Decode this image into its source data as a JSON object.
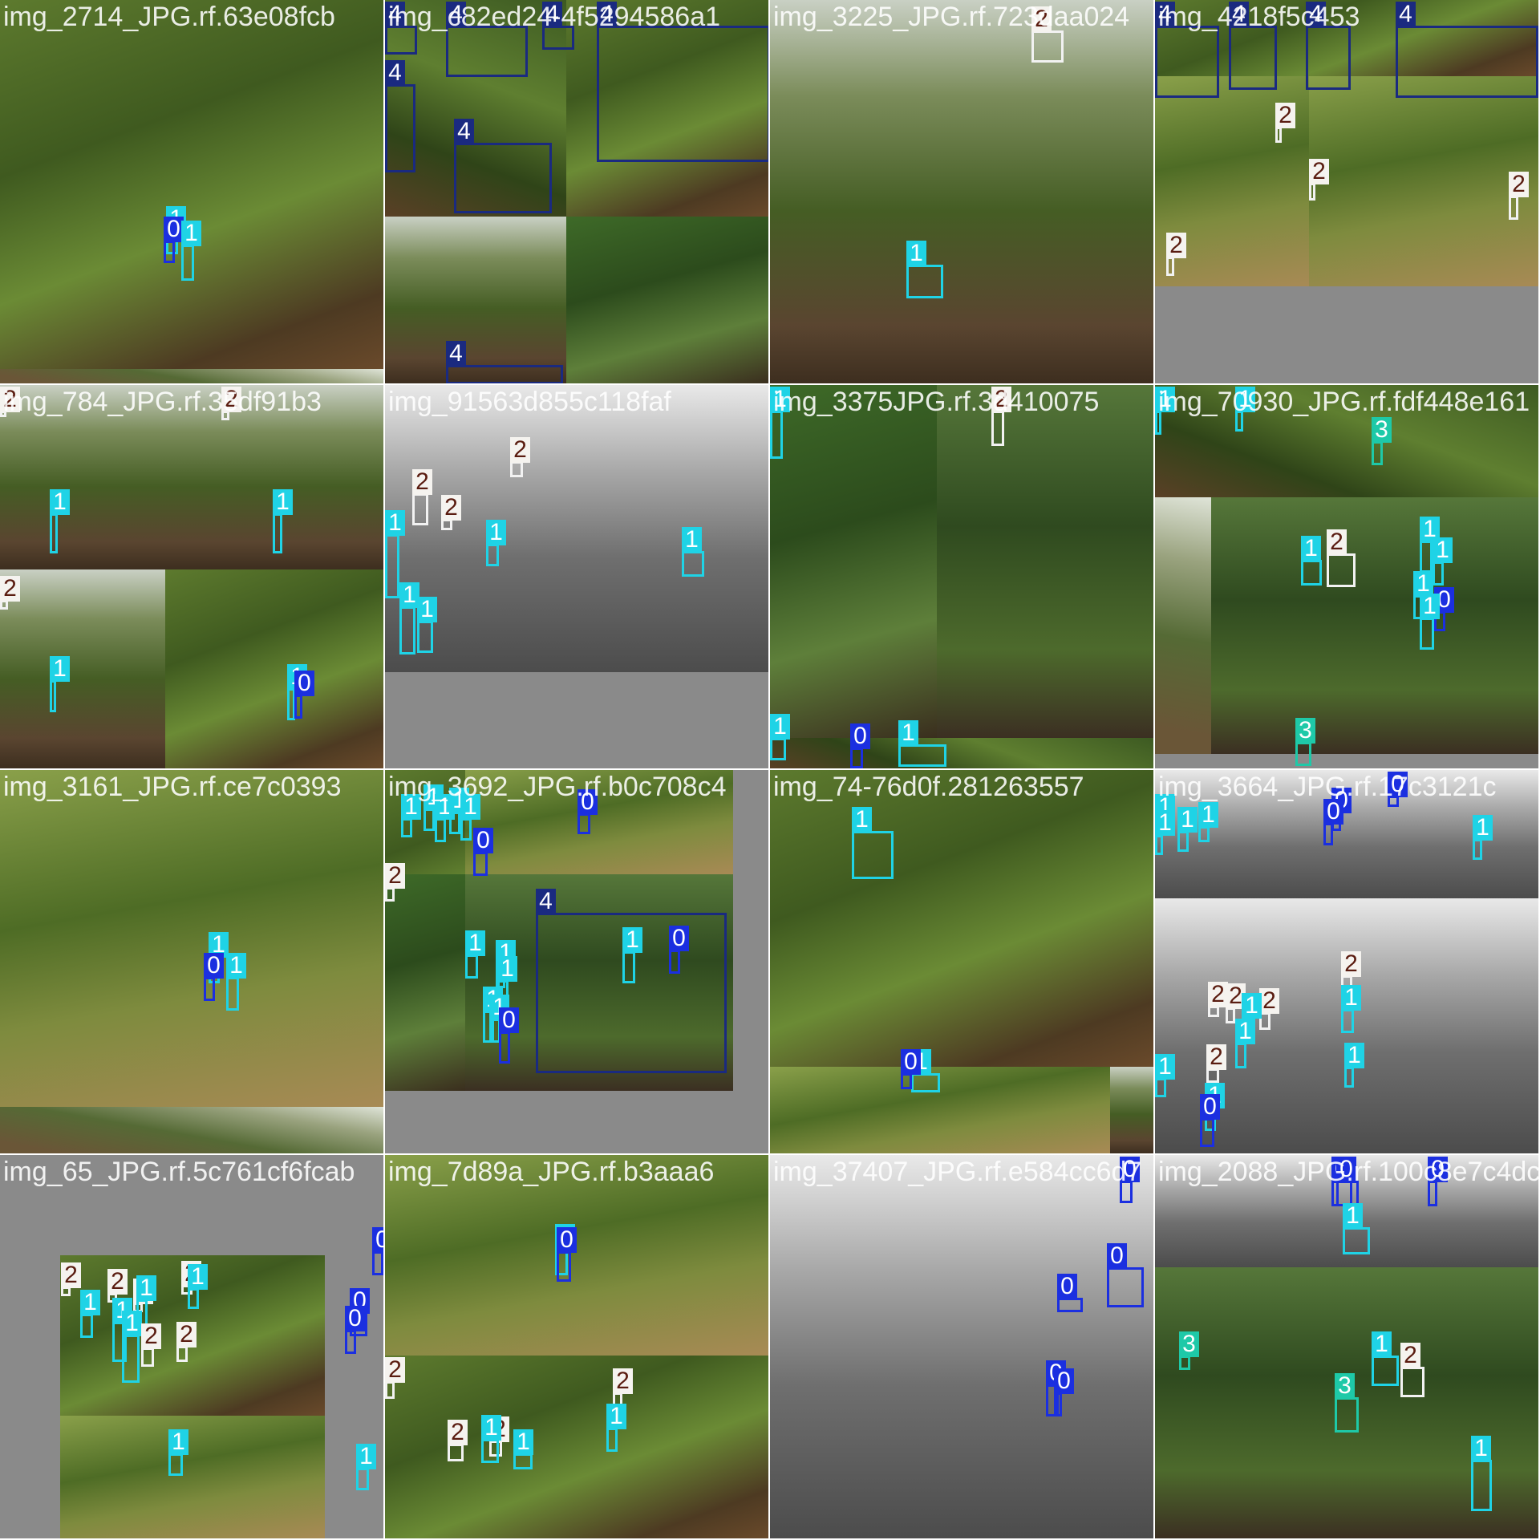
{
  "classes": {
    "0": {
      "label": "0",
      "color": "#1b2fe0"
    },
    "1": {
      "label": "1",
      "color": "#1fd3e6"
    },
    "2": {
      "label": "2",
      "color": "#f5f3ef"
    },
    "3": {
      "label": "3",
      "color": "#1ec9a8"
    },
    "4": {
      "label": "4",
      "color": "#1a2a80"
    }
  },
  "tiles": [
    {
      "filename": "img_2714_JPG.rf.63e08fcb",
      "labels": [
        "1",
        "0",
        "1"
      ]
    },
    {
      "filename": "img_c82ed24-4f5294586a1",
      "labels": [
        "4",
        "4",
        "4",
        "4",
        "4",
        "4",
        "4"
      ]
    },
    {
      "filename": "img_3225_JPG.rf.723daa024",
      "labels": [
        "2",
        "1"
      ]
    },
    {
      "filename": "img_4218f5c453",
      "labels": [
        "4",
        "4",
        "4",
        "4",
        "2",
        "2",
        "2",
        "2"
      ]
    },
    {
      "filename": "img_784_JPG.rf.35df91b3",
      "labels": [
        "2",
        "2",
        "1",
        "1",
        "2",
        "1",
        "1",
        "0"
      ]
    },
    {
      "filename": "img_91563d855c118faf",
      "labels": [
        "2",
        "2",
        "2",
        "1",
        "1",
        "1",
        "1",
        "1"
      ]
    },
    {
      "filename": "img_3375JPG.rf.3d410075",
      "labels": [
        "1",
        "2",
        "1",
        "0",
        "1"
      ]
    },
    {
      "filename": "img_70930_JPG.rf.fdf448e161",
      "labels": [
        "1",
        "1",
        "3",
        "1",
        "2",
        "1",
        "1",
        "1",
        "0",
        "1",
        "3"
      ]
    },
    {
      "filename": "img_3161_JPG.rf.ce7c0393",
      "labels": [
        "1",
        "0",
        "1"
      ]
    },
    {
      "filename": "img_3692_JPG.rf.b0c708c4",
      "labels": [
        "1",
        "1",
        "1",
        "1",
        "1",
        "0",
        "2",
        "0",
        "1",
        "4",
        "0",
        "1",
        "1",
        "1",
        "1",
        "1",
        "0"
      ]
    },
    {
      "filename": "img_74-76d0f.281263557",
      "labels": [
        "1",
        "1",
        "0"
      ]
    },
    {
      "filename": "img_3664_JPG.rf.17c3121c",
      "labels": [
        "1",
        "1",
        "1",
        "1",
        "0",
        "0",
        "0",
        "1",
        "2",
        "2",
        "1",
        "2",
        "2",
        "1",
        "1",
        "1",
        "2",
        "1",
        "1",
        "0"
      ]
    },
    {
      "filename": "img_65_JPG.rf.5c761cf6fcab",
      "labels": [
        "2",
        "2",
        "2",
        "2",
        "1",
        "1",
        "1",
        "1",
        "1",
        "2",
        "0",
        "0",
        "0",
        "2",
        "1",
        "1"
      ]
    },
    {
      "filename": "img_7d89a_JPG.rf.b3aaa6",
      "labels": [
        "1",
        "0",
        "2",
        "2",
        "2",
        "2",
        "1",
        "1",
        "1"
      ]
    },
    {
      "filename": "img_37407_JPG.rf.e584cc6d7",
      "labels": [
        "0",
        "0",
        "0",
        "0",
        "0"
      ]
    },
    {
      "filename": "img_2088_JPG.rf.100c8e7c4dc",
      "labels": [
        "0",
        "0",
        "0",
        "1",
        "3",
        "3",
        "2",
        "1",
        "1"
      ]
    }
  ]
}
